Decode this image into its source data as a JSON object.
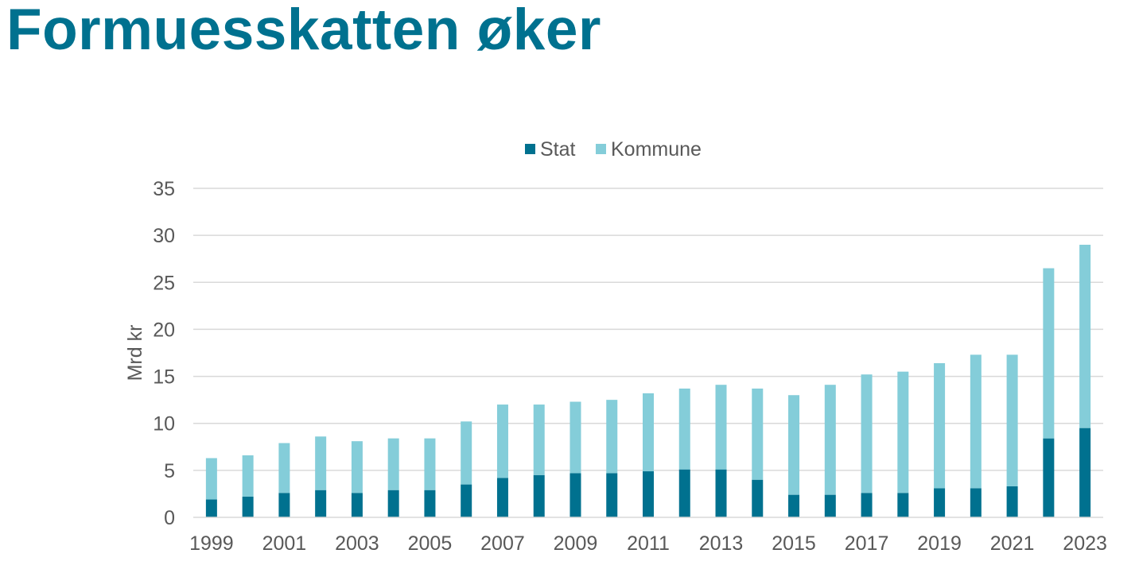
{
  "page": {
    "title": "Formuesskatten øker",
    "title_color": "#00718F"
  },
  "chart_data": {
    "type": "bar",
    "stacked": true,
    "categories": [
      "1999",
      "2000",
      "2001",
      "2002",
      "2003",
      "2004",
      "2005",
      "2006",
      "2007",
      "2008",
      "2009",
      "2010",
      "2011",
      "2012",
      "2013",
      "2014",
      "2015",
      "2016",
      "2017",
      "2018",
      "2019",
      "2020",
      "2021",
      "2022",
      "2023"
    ],
    "x_tick_labels": [
      "1999",
      "",
      "2001",
      "",
      "2003",
      "",
      "2005",
      "",
      "2007",
      "",
      "2009",
      "",
      "2011",
      "",
      "2013",
      "",
      "2015",
      "",
      "2017",
      "",
      "2019",
      "",
      "2021",
      "",
      "2023"
    ],
    "series": [
      {
        "name": "Stat",
        "color": "#00718F",
        "values": [
          1.9,
          2.2,
          2.6,
          2.9,
          2.6,
          2.9,
          2.9,
          3.5,
          4.2,
          4.5,
          4.7,
          4.7,
          4.9,
          5.1,
          5.1,
          4.0,
          2.4,
          2.4,
          2.6,
          2.6,
          3.1,
          3.1,
          3.3,
          8.4,
          9.5
        ]
      },
      {
        "name": "Kommune",
        "color": "#84CDD9",
        "values": [
          4.4,
          4.4,
          5.3,
          5.7,
          5.5,
          5.5,
          5.5,
          6.7,
          7.8,
          7.5,
          7.6,
          7.8,
          8.3,
          8.6,
          9.0,
          9.7,
          10.6,
          11.7,
          12.6,
          12.9,
          13.3,
          14.2,
          14.0,
          18.1,
          19.5
        ]
      }
    ],
    "ylabel": "Mrd kr",
    "xlabel": "",
    "ylim": [
      0,
      35
    ],
    "yticks": [
      0,
      5,
      10,
      15,
      20,
      25,
      30,
      35
    ],
    "grid": true,
    "legend_position": "top-center",
    "gridline_color": "#D9D9D9",
    "text_color": "#595959"
  }
}
